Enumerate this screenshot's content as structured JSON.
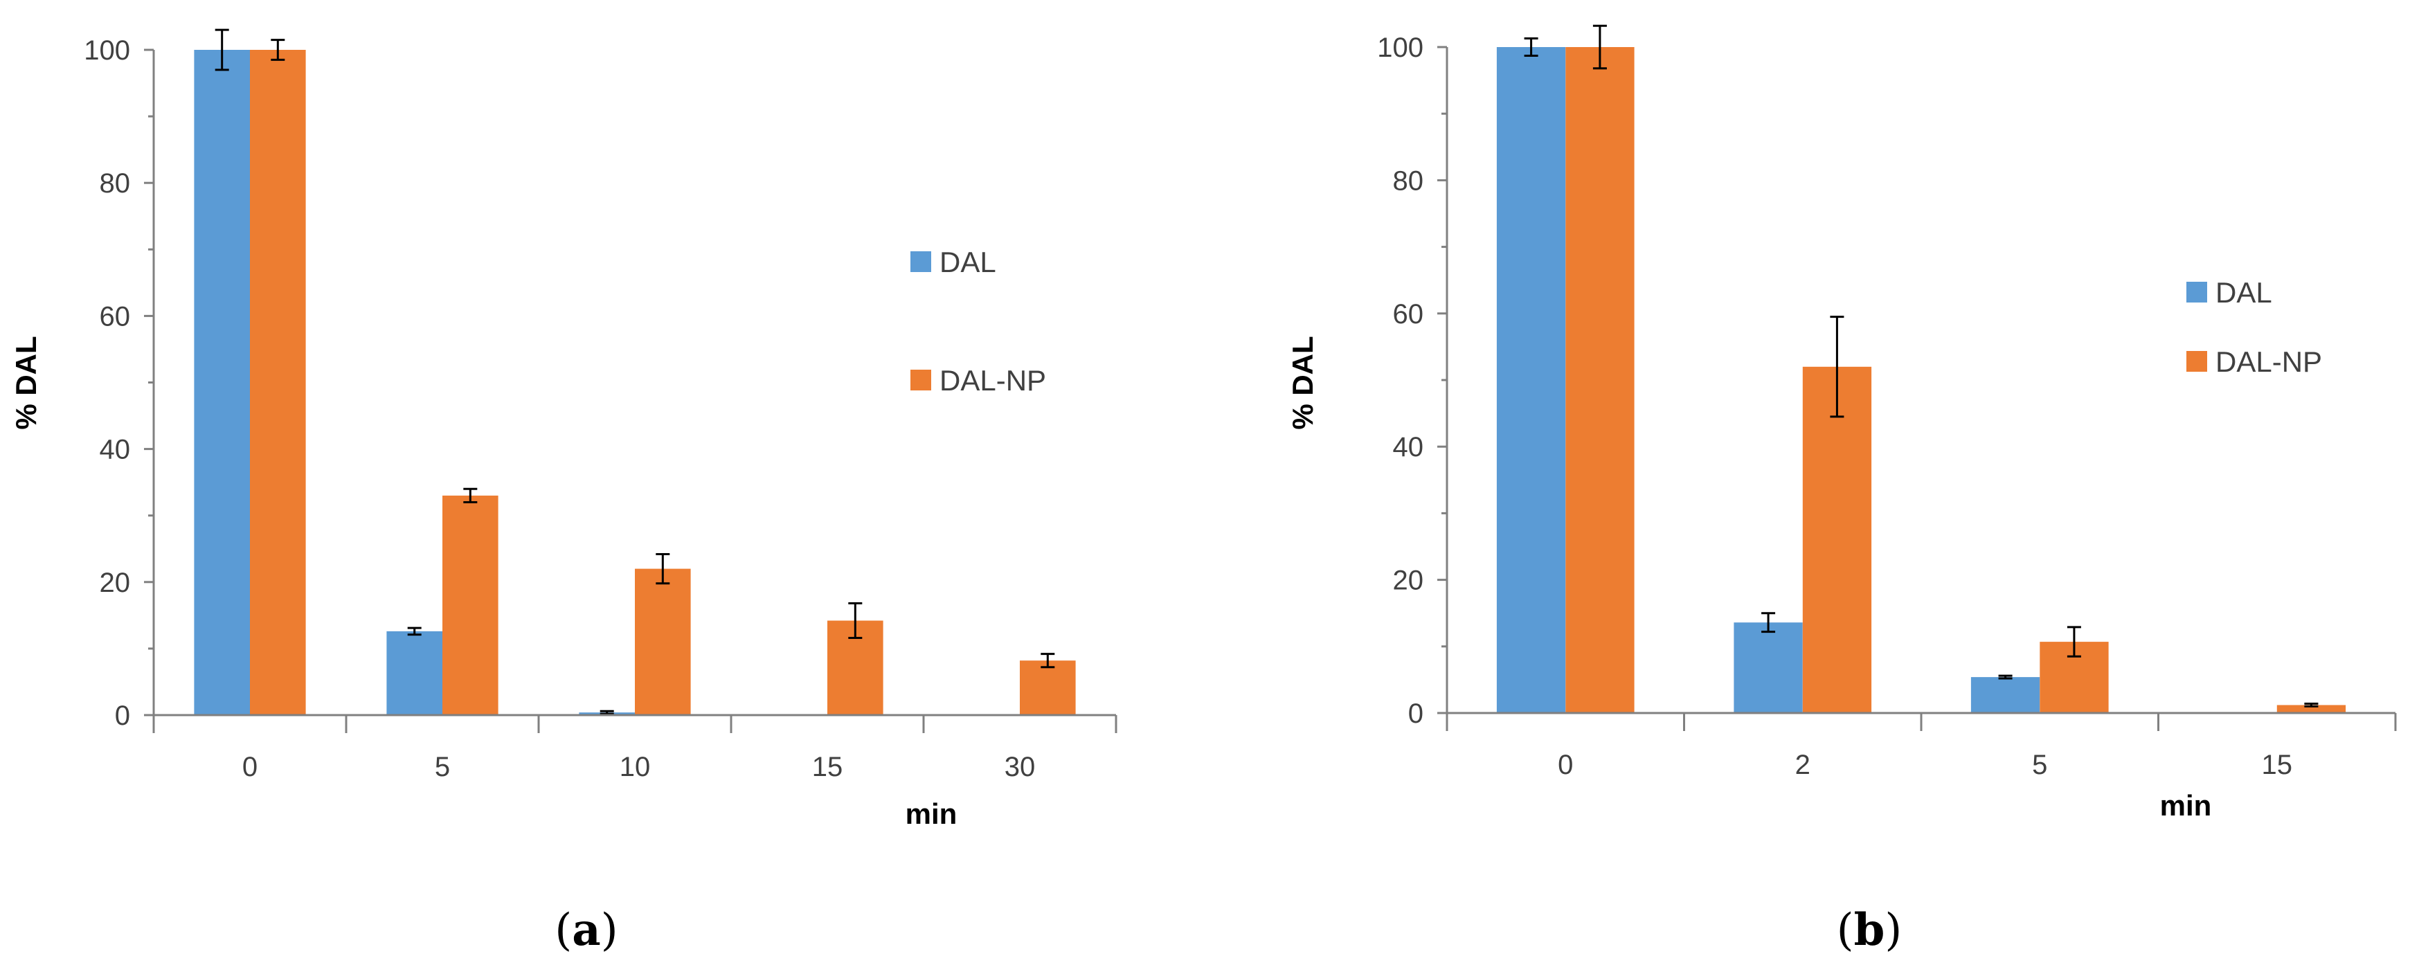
{
  "colors": {
    "DAL": "#5B9BD5",
    "DAL-NP": "#ED7D31",
    "axis": "#808080",
    "errbar": "#000000"
  },
  "chart_data": [
    {
      "panel": "a",
      "type": "bar",
      "xlabel": "min",
      "ylabel": "% DAL",
      "ylim": [
        0,
        100
      ],
      "yticks": [
        0,
        20,
        40,
        60,
        80,
        100
      ],
      "grid": false,
      "legend_position": "right",
      "categories": [
        "0",
        "5",
        "10",
        "15",
        "30"
      ],
      "series": [
        {
          "name": "DAL",
          "color_key": "DAL",
          "values": [
            100,
            12.6,
            0.4,
            0,
            0
          ],
          "errors": [
            3,
            0.5,
            0.2,
            0,
            0
          ]
        },
        {
          "name": "DAL-NP",
          "color_key": "DAL-NP",
          "values": [
            100,
            33,
            22,
            14.2,
            8.2
          ],
          "errors": [
            1.5,
            1,
            2.2,
            2.6,
            1
          ]
        }
      ]
    },
    {
      "panel": "b",
      "type": "bar",
      "xlabel": "min",
      "ylabel": "% DAL",
      "ylim": [
        0,
        100
      ],
      "yticks": [
        0,
        20,
        40,
        60,
        80,
        100
      ],
      "grid": false,
      "legend_position": "right",
      "categories": [
        "0",
        "2",
        "5",
        "15"
      ],
      "series": [
        {
          "name": "DAL",
          "color_key": "DAL",
          "values": [
            100,
            13.6,
            5.4,
            0
          ],
          "errors": [
            1.3,
            1.4,
            0.2,
            0
          ]
        },
        {
          "name": "DAL-NP",
          "color_key": "DAL-NP",
          "values": [
            100,
            52,
            10.7,
            1.2
          ],
          "errors": [
            3.2,
            7.5,
            2.2,
            0.2
          ]
        }
      ]
    }
  ],
  "panel_labels": [
    {
      "open": "(",
      "letter": "a",
      "close": ")"
    },
    {
      "open": "(",
      "letter": "b",
      "close": ")"
    }
  ]
}
